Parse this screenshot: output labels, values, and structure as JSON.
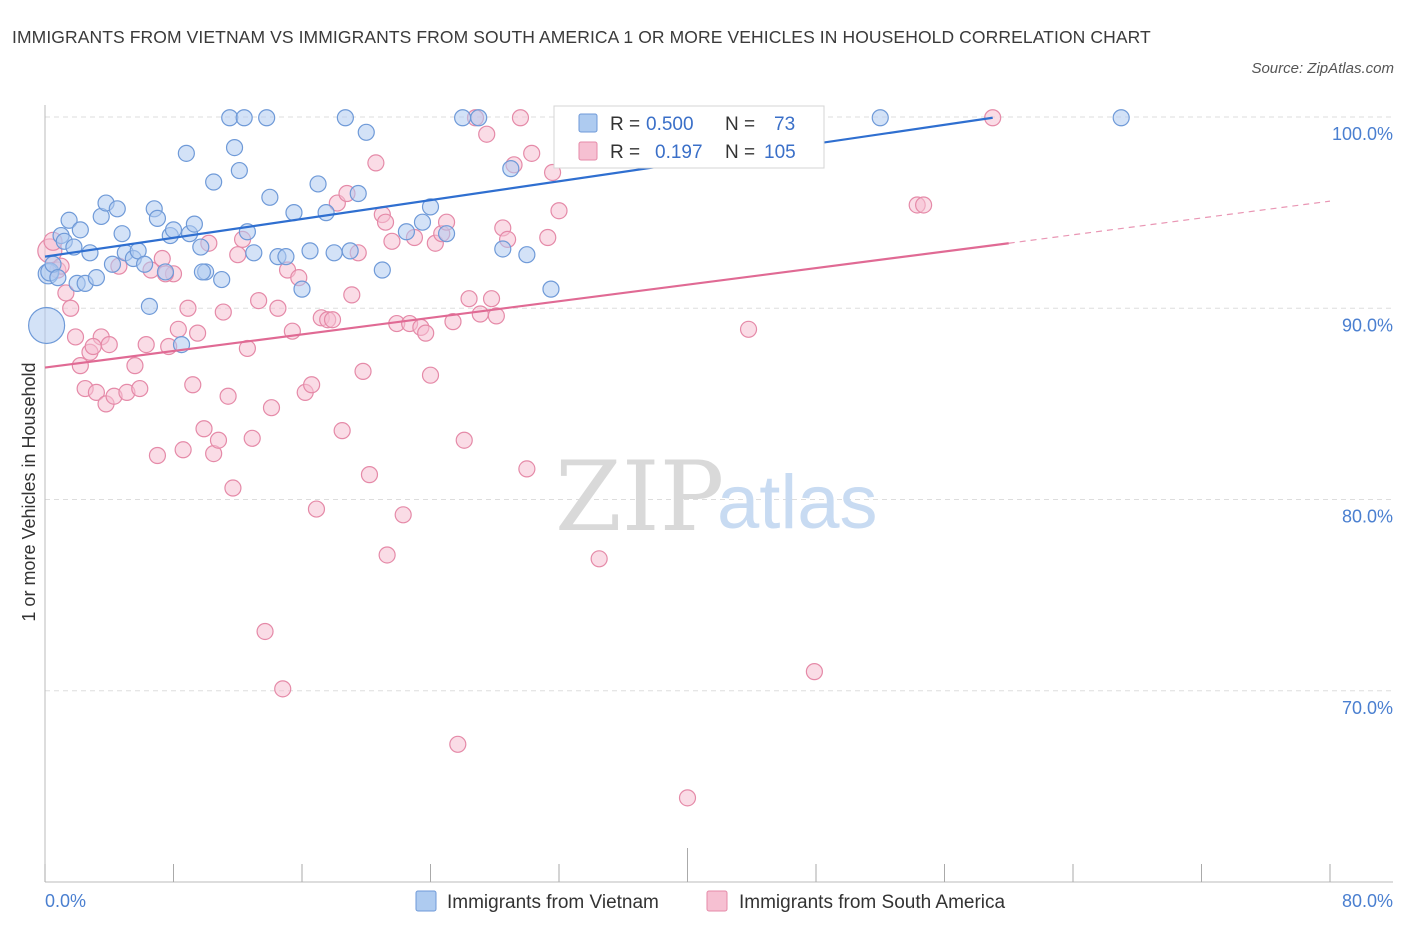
{
  "title": "IMMIGRANTS FROM VIETNAM VS IMMIGRANTS FROM SOUTH AMERICA 1 OR MORE VEHICLES IN HOUSEHOLD CORRELATION CHART",
  "source": "Source: ZipAtlas.com",
  "watermark": {
    "zip": "ZIP",
    "atlas": "atlas"
  },
  "colors": {
    "vietnam_fill": "#aecbf0",
    "vietnam_stroke": "#6f9ad8",
    "vietnam_line": "#2f6fd0",
    "southam_fill": "#f6c0d2",
    "southam_stroke": "#e58aa8",
    "southam_line": "#e06a94",
    "grid": "#dddddd",
    "tick_label": "#4a7fd0"
  },
  "stats": {
    "r_label": "R =",
    "n_label": "N =",
    "vietnam": {
      "r": "0.500",
      "n": "73"
    },
    "southam": {
      "r": "0.197",
      "n": "105"
    }
  },
  "chart_data": {
    "type": "scatter",
    "title": "IMMIGRANTS FROM VIETNAM VS IMMIGRANTS FROM SOUTH AMERICA 1 OR MORE VEHICLES IN HOUSEHOLD CORRELATION CHART",
    "xlabel": "",
    "ylabel": "1 or more Vehicles in Household",
    "xlim": [
      0,
      80
    ],
    "ylim": [
      60,
      100
    ],
    "x_tick_labels": [
      "0.0%",
      "80.0%"
    ],
    "y_ticks": [
      70,
      80,
      90,
      100
    ],
    "y_tick_labels": [
      "70.0%",
      "80.0%",
      "90.0%",
      "100.0%"
    ],
    "grid": true,
    "legend_placement": "bottom-center",
    "series": [
      {
        "name": "Immigrants from Vietnam",
        "color": "#6f9ad8",
        "trend": {
          "x0": 0,
          "y0": 92.7,
          "x1": 59,
          "y1": 99.96
        },
        "points": [
          [
            0.1,
            89.1,
            18
          ],
          [
            0.2,
            91.8,
            10
          ],
          [
            0.3,
            91.9,
            9
          ],
          [
            0.5,
            92.3,
            8
          ],
          [
            0.8,
            91.6,
            8
          ],
          [
            1.0,
            93.8,
            8
          ],
          [
            1.2,
            93.5,
            8
          ],
          [
            1.5,
            94.6,
            8
          ],
          [
            1.8,
            93.2,
            8
          ],
          [
            2.0,
            91.3,
            8
          ],
          [
            2.2,
            94.1,
            8
          ],
          [
            2.5,
            91.3,
            8
          ],
          [
            2.8,
            92.9,
            8
          ],
          [
            3.2,
            91.6,
            8
          ],
          [
            3.5,
            94.8,
            8
          ],
          [
            3.8,
            95.5,
            8
          ],
          [
            4.2,
            92.3,
            8
          ],
          [
            4.5,
            95.2,
            8
          ],
          [
            4.8,
            93.9,
            8
          ],
          [
            5.0,
            92.9,
            8
          ],
          [
            5.5,
            92.6,
            8
          ],
          [
            5.8,
            93.0,
            8
          ],
          [
            6.2,
            92.3,
            8
          ],
          [
            6.5,
            90.1,
            8
          ],
          [
            6.8,
            95.2,
            8
          ],
          [
            7.0,
            94.7,
            8
          ],
          [
            7.5,
            91.9,
            8
          ],
          [
            7.8,
            93.8,
            8
          ],
          [
            8.0,
            94.1,
            8
          ],
          [
            8.5,
            88.1,
            8
          ],
          [
            8.8,
            98.1,
            8
          ],
          [
            9.0,
            93.9,
            8
          ],
          [
            9.3,
            94.4,
            8
          ],
          [
            9.7,
            93.2,
            8
          ],
          [
            10.0,
            91.9,
            8
          ],
          [
            10.5,
            96.6,
            8
          ],
          [
            11.0,
            91.5,
            8
          ],
          [
            11.5,
            99.96,
            8
          ],
          [
            11.8,
            98.4,
            8
          ],
          [
            12.1,
            97.2,
            8
          ],
          [
            12.4,
            99.96,
            8
          ],
          [
            12.6,
            94.0,
            8
          ],
          [
            13.0,
            92.9,
            8
          ],
          [
            13.8,
            99.96,
            8
          ],
          [
            14.0,
            95.8,
            8
          ],
          [
            14.5,
            92.7,
            8
          ],
          [
            15.0,
            92.7,
            8
          ],
          [
            15.5,
            95.0,
            8
          ],
          [
            16.5,
            93.0,
            8
          ],
          [
            17.0,
            96.5,
            8
          ],
          [
            17.5,
            95.0,
            8
          ],
          [
            18.0,
            92.9,
            8
          ],
          [
            18.7,
            99.96,
            8
          ],
          [
            19.0,
            93.0,
            8
          ],
          [
            19.5,
            96.0,
            8
          ],
          [
            20.0,
            99.2,
            8
          ],
          [
            21.0,
            92.0,
            8
          ],
          [
            22.5,
            94.0,
            8
          ],
          [
            23.5,
            94.5,
            8
          ],
          [
            24.0,
            95.3,
            8
          ],
          [
            25.0,
            93.9,
            8
          ],
          [
            26.0,
            99.96,
            8
          ],
          [
            27.0,
            99.96,
            8
          ],
          [
            28.5,
            93.1,
            8
          ],
          [
            29.0,
            97.3,
            8
          ],
          [
            30.0,
            92.8,
            8
          ],
          [
            31.5,
            91.0,
            8
          ],
          [
            36.0,
            99.96,
            8
          ],
          [
            43.0,
            99.96,
            8
          ],
          [
            52.0,
            99.96,
            8
          ],
          [
            67.0,
            99.96,
            8
          ],
          [
            16.0,
            91.0,
            8
          ],
          [
            9.8,
            91.9,
            8
          ]
        ]
      },
      {
        "name": "Immigrants from South America",
        "color": "#e58aa8",
        "trend": {
          "x0": 0,
          "y0": 86.9,
          "x1": 60,
          "y1": 93.4,
          "dash_x1": 80,
          "dash_y1": 95.6
        },
        "points": [
          [
            0.3,
            93.0,
            12
          ],
          [
            0.5,
            93.5,
            9
          ],
          [
            0.8,
            92.0,
            8
          ],
          [
            1.0,
            92.2,
            8
          ],
          [
            1.3,
            90.8,
            8
          ],
          [
            1.6,
            90.0,
            8
          ],
          [
            1.9,
            88.5,
            8
          ],
          [
            2.2,
            87.0,
            8
          ],
          [
            2.5,
            85.8,
            8
          ],
          [
            2.8,
            87.7,
            8
          ],
          [
            3.2,
            85.6,
            8
          ],
          [
            3.5,
            88.5,
            8
          ],
          [
            3.8,
            85.0,
            8
          ],
          [
            4.0,
            88.1,
            8
          ],
          [
            4.3,
            85.4,
            8
          ],
          [
            4.6,
            92.2,
            8
          ],
          [
            5.1,
            85.6,
            8
          ],
          [
            5.6,
            87.0,
            8
          ],
          [
            5.9,
            85.8,
            8
          ],
          [
            6.3,
            88.1,
            8
          ],
          [
            6.6,
            92.0,
            8
          ],
          [
            7.0,
            82.3,
            8
          ],
          [
            7.3,
            92.6,
            8
          ],
          [
            7.7,
            88.0,
            8
          ],
          [
            8.0,
            91.8,
            8
          ],
          [
            8.3,
            88.9,
            8
          ],
          [
            8.6,
            82.6,
            8
          ],
          [
            8.9,
            90.0,
            8
          ],
          [
            9.2,
            86.0,
            8
          ],
          [
            9.5,
            88.7,
            8
          ],
          [
            9.9,
            83.7,
            8
          ],
          [
            10.2,
            93.4,
            8
          ],
          [
            10.5,
            82.4,
            8
          ],
          [
            10.8,
            83.1,
            8
          ],
          [
            11.1,
            89.8,
            8
          ],
          [
            11.4,
            85.4,
            8
          ],
          [
            11.7,
            80.6,
            8
          ],
          [
            12.0,
            92.8,
            8
          ],
          [
            12.3,
            93.6,
            8
          ],
          [
            12.6,
            87.9,
            8
          ],
          [
            12.9,
            83.2,
            8
          ],
          [
            13.3,
            90.4,
            8
          ],
          [
            13.7,
            73.1,
            8
          ],
          [
            14.1,
            84.8,
            8
          ],
          [
            14.5,
            90.0,
            8
          ],
          [
            14.8,
            70.1,
            8
          ],
          [
            15.1,
            92.0,
            8
          ],
          [
            15.4,
            88.8,
            8
          ],
          [
            15.8,
            91.6,
            8
          ],
          [
            16.2,
            85.6,
            8
          ],
          [
            16.6,
            86.0,
            8
          ],
          [
            16.9,
            79.5,
            8
          ],
          [
            17.2,
            89.5,
            8
          ],
          [
            17.6,
            89.4,
            8
          ],
          [
            17.9,
            89.4,
            8
          ],
          [
            18.2,
            95.5,
            8
          ],
          [
            18.5,
            83.6,
            8
          ],
          [
            18.8,
            96.0,
            8
          ],
          [
            19.1,
            90.7,
            8
          ],
          [
            19.5,
            92.9,
            8
          ],
          [
            19.8,
            86.7,
            8
          ],
          [
            20.2,
            81.3,
            8
          ],
          [
            20.6,
            97.6,
            8
          ],
          [
            21.0,
            94.9,
            8
          ],
          [
            21.3,
            77.1,
            8
          ],
          [
            21.6,
            93.5,
            8
          ],
          [
            21.9,
            89.2,
            8
          ],
          [
            22.3,
            79.2,
            8
          ],
          [
            22.7,
            89.2,
            8
          ],
          [
            23.0,
            93.7,
            8
          ],
          [
            23.4,
            89.0,
            8
          ],
          [
            23.7,
            88.7,
            8
          ],
          [
            24.0,
            86.5,
            8
          ],
          [
            24.3,
            93.4,
            8
          ],
          [
            24.7,
            93.9,
            8
          ],
          [
            25.0,
            94.5,
            8
          ],
          [
            25.4,
            89.3,
            8
          ],
          [
            25.7,
            67.2,
            8
          ],
          [
            26.1,
            83.1,
            8
          ],
          [
            26.4,
            90.5,
            8
          ],
          [
            26.8,
            99.96,
            8
          ],
          [
            27.1,
            89.7,
            8
          ],
          [
            27.5,
            99.1,
            8
          ],
          [
            27.8,
            90.5,
            8
          ],
          [
            28.1,
            89.6,
            8
          ],
          [
            28.5,
            94.2,
            8
          ],
          [
            28.8,
            93.6,
            8
          ],
          [
            29.2,
            97.5,
            8
          ],
          [
            29.6,
            99.96,
            8
          ],
          [
            30.0,
            81.6,
            8
          ],
          [
            30.3,
            98.1,
            8
          ],
          [
            31.3,
            93.7,
            8
          ],
          [
            31.6,
            97.1,
            8
          ],
          [
            32.0,
            95.1,
            8
          ],
          [
            34.5,
            76.9,
            8
          ],
          [
            36.5,
            99.96,
            8
          ],
          [
            40.0,
            64.4,
            8
          ],
          [
            43.8,
            88.9,
            8
          ],
          [
            47.9,
            71.0,
            8
          ],
          [
            54.3,
            95.4,
            8
          ],
          [
            54.7,
            95.4,
            8
          ],
          [
            59.0,
            99.96,
            8
          ],
          [
            21.2,
            94.5,
            8
          ],
          [
            7.5,
            91.8,
            8
          ],
          [
            3.0,
            88.0,
            8
          ]
        ]
      }
    ]
  }
}
